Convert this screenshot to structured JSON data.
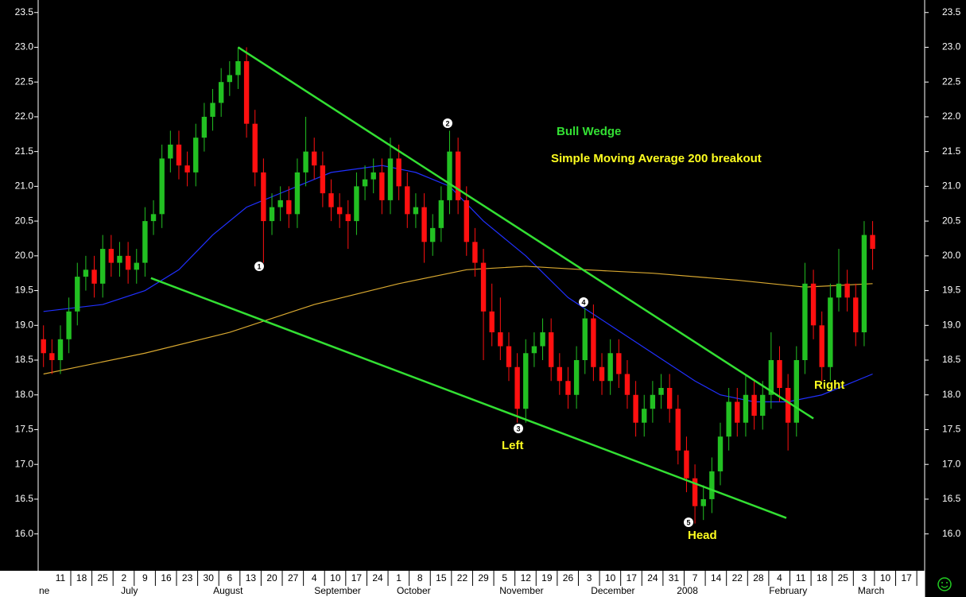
{
  "chart_data": {
    "type": "candlestick",
    "x": [
      -4,
      -2,
      0,
      2,
      4,
      6,
      8,
      10,
      12,
      14,
      16,
      18,
      20,
      22,
      24,
      26,
      28,
      30,
      32,
      34,
      36,
      38,
      40,
      42,
      44,
      46,
      48,
      50,
      52,
      54,
      56,
      58,
      60,
      62,
      64,
      66,
      68,
      70,
      72,
      74,
      76,
      78,
      80,
      82,
      84,
      86,
      88,
      90,
      92,
      94,
      96,
      98,
      100,
      102,
      104,
      106,
      108,
      110,
      112,
      114,
      116,
      118,
      120,
      122,
      124,
      126,
      128,
      130,
      132,
      134,
      136,
      138,
      140,
      142,
      144,
      146,
      148,
      150,
      152,
      154,
      156,
      158,
      160,
      162,
      164,
      166,
      168,
      170,
      172,
      174,
      176,
      178,
      180,
      182,
      184,
      186,
      188,
      190,
      192
    ],
    "open": [
      18.8,
      18.6,
      18.5,
      18.8,
      19.2,
      19.7,
      19.8,
      19.6,
      20.1,
      19.9,
      20.0,
      19.8,
      19.9,
      20.5,
      20.6,
      21.4,
      21.6,
      21.3,
      21.2,
      21.7,
      22.0,
      22.2,
      22.5,
      22.6,
      22.8,
      21.9,
      21.2,
      20.5,
      20.7,
      20.8,
      20.6,
      21.2,
      21.5,
      21.3,
      20.9,
      20.7,
      20.6,
      20.5,
      21.0,
      21.1,
      21.2,
      20.8,
      21.4,
      21.0,
      20.6,
      20.7,
      20.2,
      20.4,
      20.8,
      21.5,
      20.8,
      20.2,
      19.9,
      19.2,
      18.9,
      18.7,
      18.4,
      17.8,
      18.6,
      18.7,
      18.9,
      18.4,
      18.2,
      18.0,
      18.5,
      19.1,
      18.4,
      18.2,
      18.6,
      18.3,
      18.0,
      17.6,
      17.8,
      18.0,
      18.1,
      17.8,
      17.2,
      16.8,
      16.4,
      16.5,
      16.9,
      17.4,
      17.9,
      17.6,
      18.0,
      17.7,
      18.0,
      18.5,
      18.1,
      17.6,
      18.5,
      19.6,
      19.0,
      18.4,
      19.4,
      19.6,
      19.4,
      18.9,
      20.3
    ],
    "high": [
      19.0,
      18.8,
      19.0,
      19.4,
      19.9,
      20.0,
      20.0,
      20.3,
      20.3,
      20.2,
      20.2,
      20.1,
      20.7,
      20.8,
      21.6,
      21.8,
      21.8,
      21.5,
      21.9,
      22.2,
      22.4,
      22.7,
      22.8,
      23.0,
      23.0,
      22.1,
      21.4,
      20.9,
      21.0,
      21.0,
      21.4,
      22.0,
      21.7,
      21.5,
      21.1,
      20.9,
      20.8,
      21.2,
      21.3,
      21.4,
      21.4,
      21.7,
      21.6,
      21.2,
      20.9,
      20.9,
      20.6,
      21.0,
      21.8,
      21.7,
      21.0,
      20.4,
      20.1,
      19.6,
      19.4,
      18.9,
      18.6,
      18.8,
      18.9,
      19.1,
      19.1,
      18.6,
      18.4,
      18.7,
      19.25,
      19.3,
      18.6,
      18.8,
      18.8,
      18.5,
      18.2,
      18.0,
      18.2,
      18.3,
      18.3,
      18.0,
      17.4,
      17.0,
      16.7,
      17.1,
      17.6,
      18.1,
      18.1,
      18.3,
      18.2,
      18.2,
      18.9,
      18.7,
      18.3,
      18.7,
      19.9,
      19.8,
      19.2,
      19.6,
      20.1,
      19.8,
      19.6,
      20.5,
      20.5
    ],
    "low": [
      18.4,
      18.3,
      18.3,
      18.6,
      19.0,
      19.5,
      19.4,
      19.4,
      19.7,
      19.7,
      19.6,
      19.6,
      19.7,
      20.3,
      20.4,
      21.2,
      21.1,
      21.0,
      21.0,
      21.5,
      21.8,
      22.0,
      22.3,
      22.4,
      21.7,
      21.0,
      19.9,
      20.3,
      20.5,
      20.4,
      20.4,
      21.0,
      21.1,
      20.7,
      20.5,
      20.4,
      20.1,
      20.3,
      20.8,
      20.9,
      20.6,
      20.6,
      20.8,
      20.4,
      20.4,
      19.9,
      20.0,
      20.2,
      20.6,
      20.6,
      20.0,
      19.7,
      18.5,
      18.7,
      18.5,
      18.2,
      17.6,
      17.6,
      18.4,
      18.5,
      18.2,
      18.0,
      17.8,
      17.8,
      18.3,
      18.2,
      18.0,
      18.0,
      18.1,
      17.8,
      17.4,
      17.4,
      17.6,
      17.8,
      17.6,
      17.0,
      16.6,
      16.15,
      16.2,
      16.3,
      16.7,
      17.2,
      17.4,
      17.4,
      17.5,
      17.5,
      17.8,
      17.9,
      17.2,
      17.4,
      18.3,
      18.8,
      18.2,
      18.2,
      19.2,
      19.2,
      18.7,
      18.7,
      19.8
    ],
    "close": [
      18.6,
      18.5,
      18.8,
      19.2,
      19.7,
      19.8,
      19.6,
      20.1,
      19.9,
      20.0,
      19.8,
      19.9,
      20.5,
      20.6,
      21.4,
      21.6,
      21.3,
      21.2,
      21.7,
      22.0,
      22.2,
      22.5,
      22.6,
      22.8,
      21.9,
      21.2,
      20.5,
      20.7,
      20.8,
      20.6,
      21.2,
      21.5,
      21.3,
      20.9,
      20.7,
      20.6,
      20.5,
      21.0,
      21.1,
      21.2,
      20.8,
      21.4,
      21.0,
      20.6,
      20.7,
      20.2,
      20.4,
      20.8,
      21.5,
      20.8,
      20.2,
      19.9,
      19.2,
      18.9,
      18.7,
      18.4,
      17.8,
      18.6,
      18.7,
      18.9,
      18.4,
      18.2,
      18.0,
      18.5,
      19.1,
      18.4,
      18.2,
      18.6,
      18.3,
      18.0,
      17.6,
      17.8,
      18.0,
      18.1,
      17.8,
      17.2,
      16.8,
      16.4,
      16.5,
      16.9,
      17.4,
      17.9,
      17.6,
      18.0,
      17.7,
      18.0,
      18.5,
      18.1,
      17.6,
      18.5,
      19.6,
      19.0,
      18.4,
      19.4,
      19.6,
      19.4,
      18.9,
      20.3,
      20.1
    ],
    "up_color": "#22c022",
    "down_color": "#ff1010",
    "lines": [
      {
        "color": "#2030ff",
        "x": [
          -4,
          10,
          20,
          28,
          36,
          44,
          52,
          64,
          76,
          84,
          92,
          100,
          110,
          120,
          130,
          140,
          150,
          156,
          164,
          172,
          180,
          192
        ],
        "values": [
          19.2,
          19.3,
          19.5,
          19.8,
          20.3,
          20.7,
          20.9,
          21.2,
          21.3,
          21.2,
          21.0,
          20.5,
          20.0,
          19.4,
          19.0,
          18.6,
          18.2,
          18.0,
          17.9,
          17.9,
          18.0,
          18.3
        ]
      },
      {
        "color": "#d8a830",
        "x": [
          -4,
          20,
          40,
          60,
          80,
          96,
          110,
          124,
          140,
          160,
          176,
          192
        ],
        "values": [
          18.3,
          18.6,
          18.9,
          19.3,
          19.6,
          19.8,
          19.85,
          19.8,
          19.75,
          19.65,
          19.55,
          19.6
        ]
      }
    ],
    "trendlines": [
      {
        "color": "#33e033",
        "x": [
          42,
          178
        ],
        "values": [
          23.0,
          17.66
        ]
      },
      {
        "color": "#33e033",
        "x": [
          21.4,
          171.6
        ],
        "values": [
          19.68,
          16.23
        ]
      }
    ],
    "annotations": [
      {
        "text": "Bull Wedge",
        "color": "#33e033"
      },
      {
        "text": "Simple Moving Average 200 breakout",
        "color": "#ffff20"
      },
      {
        "text": "Left",
        "color": "#ffff20"
      },
      {
        "text": "Head",
        "color": "#ffff20"
      },
      {
        "text": "Right",
        "color": "#ffff20"
      }
    ],
    "markers": [
      "1",
      "2",
      "3",
      "4",
      "5"
    ],
    "xlim": [
      -5.26,
      204.3
    ],
    "ylim": [
      15.47,
      23.68
    ],
    "yticks": [
      {
        "value": 16,
        "label": "16.0"
      },
      16.5,
      {
        "value": 17,
        "label": "17.0"
      },
      17.5,
      {
        "value": 18,
        "label": "18.0"
      },
      18.5,
      {
        "value": 19,
        "label": "19.0"
      },
      19.5,
      {
        "value": 20,
        "label": "20.0"
      },
      20.5,
      {
        "value": 21,
        "label": "21.0"
      },
      21.5,
      {
        "value": 22,
        "label": "22.0"
      },
      22.5,
      {
        "value": 23,
        "label": "23.0"
      },
      23.5
    ],
    "xticks": [
      {
        "value": 0,
        "label": "11"
      },
      {
        "value": 5,
        "label": "18"
      },
      {
        "value": 10,
        "label": "25"
      },
      {
        "value": 15,
        "label": "2"
      },
      {
        "value": 20,
        "label": "9"
      },
      {
        "value": 25,
        "label": "16"
      },
      {
        "value": 30,
        "label": "23"
      },
      {
        "value": 35,
        "label": "30"
      },
      {
        "value": 40,
        "label": "6"
      },
      {
        "value": 45,
        "label": "13"
      },
      {
        "value": 50,
        "label": "20"
      },
      {
        "value": 55,
        "label": "27"
      },
      {
        "value": 60,
        "label": "4"
      },
      {
        "value": 65,
        "label": "10"
      },
      {
        "value": 70,
        "label": "17"
      },
      {
        "value": 75,
        "label": "24"
      },
      {
        "value": 80,
        "label": "1"
      },
      {
        "value": 85,
        "label": "8"
      },
      {
        "value": 90,
        "label": "15"
      },
      {
        "value": 95,
        "label": "22"
      },
      {
        "value": 100,
        "label": "29"
      },
      {
        "value": 105,
        "label": "5"
      },
      {
        "value": 110,
        "label": "12"
      },
      {
        "value": 115,
        "label": "19"
      },
      {
        "value": 120,
        "label": "26"
      },
      {
        "value": 125,
        "label": "3"
      },
      {
        "value": 130,
        "label": "10"
      },
      {
        "value": 135,
        "label": "17"
      },
      {
        "value": 140,
        "label": "24"
      },
      {
        "value": 145,
        "label": "31"
      },
      {
        "value": 150,
        "label": "7"
      },
      {
        "value": 155,
        "label": "14"
      },
      {
        "value": 160,
        "label": "22"
      },
      {
        "value": 165,
        "label": "28"
      },
      {
        "value": 170,
        "label": "4"
      },
      {
        "value": 175,
        "label": "11"
      },
      {
        "value": 180,
        "label": "18"
      },
      {
        "value": 185,
        "label": "25"
      },
      {
        "value": 190,
        "label": "3"
      },
      {
        "value": 195,
        "label": "10"
      },
      {
        "value": 200,
        "label": "17"
      }
    ],
    "months": [
      {
        "value": -5.3,
        "label": "ne"
      },
      {
        "value": 14.3,
        "label": "July"
      },
      {
        "value": 36.1,
        "label": "August"
      },
      {
        "value": 60,
        "label": "September"
      },
      {
        "value": 79.5,
        "label": "October"
      },
      {
        "value": 103.8,
        "label": "November"
      },
      {
        "value": 125.4,
        "label": "December"
      },
      {
        "value": 145.7,
        "label": "2008"
      },
      {
        "value": 167.5,
        "label": "February"
      },
      {
        "value": 188.5,
        "label": "March"
      }
    ]
  }
}
